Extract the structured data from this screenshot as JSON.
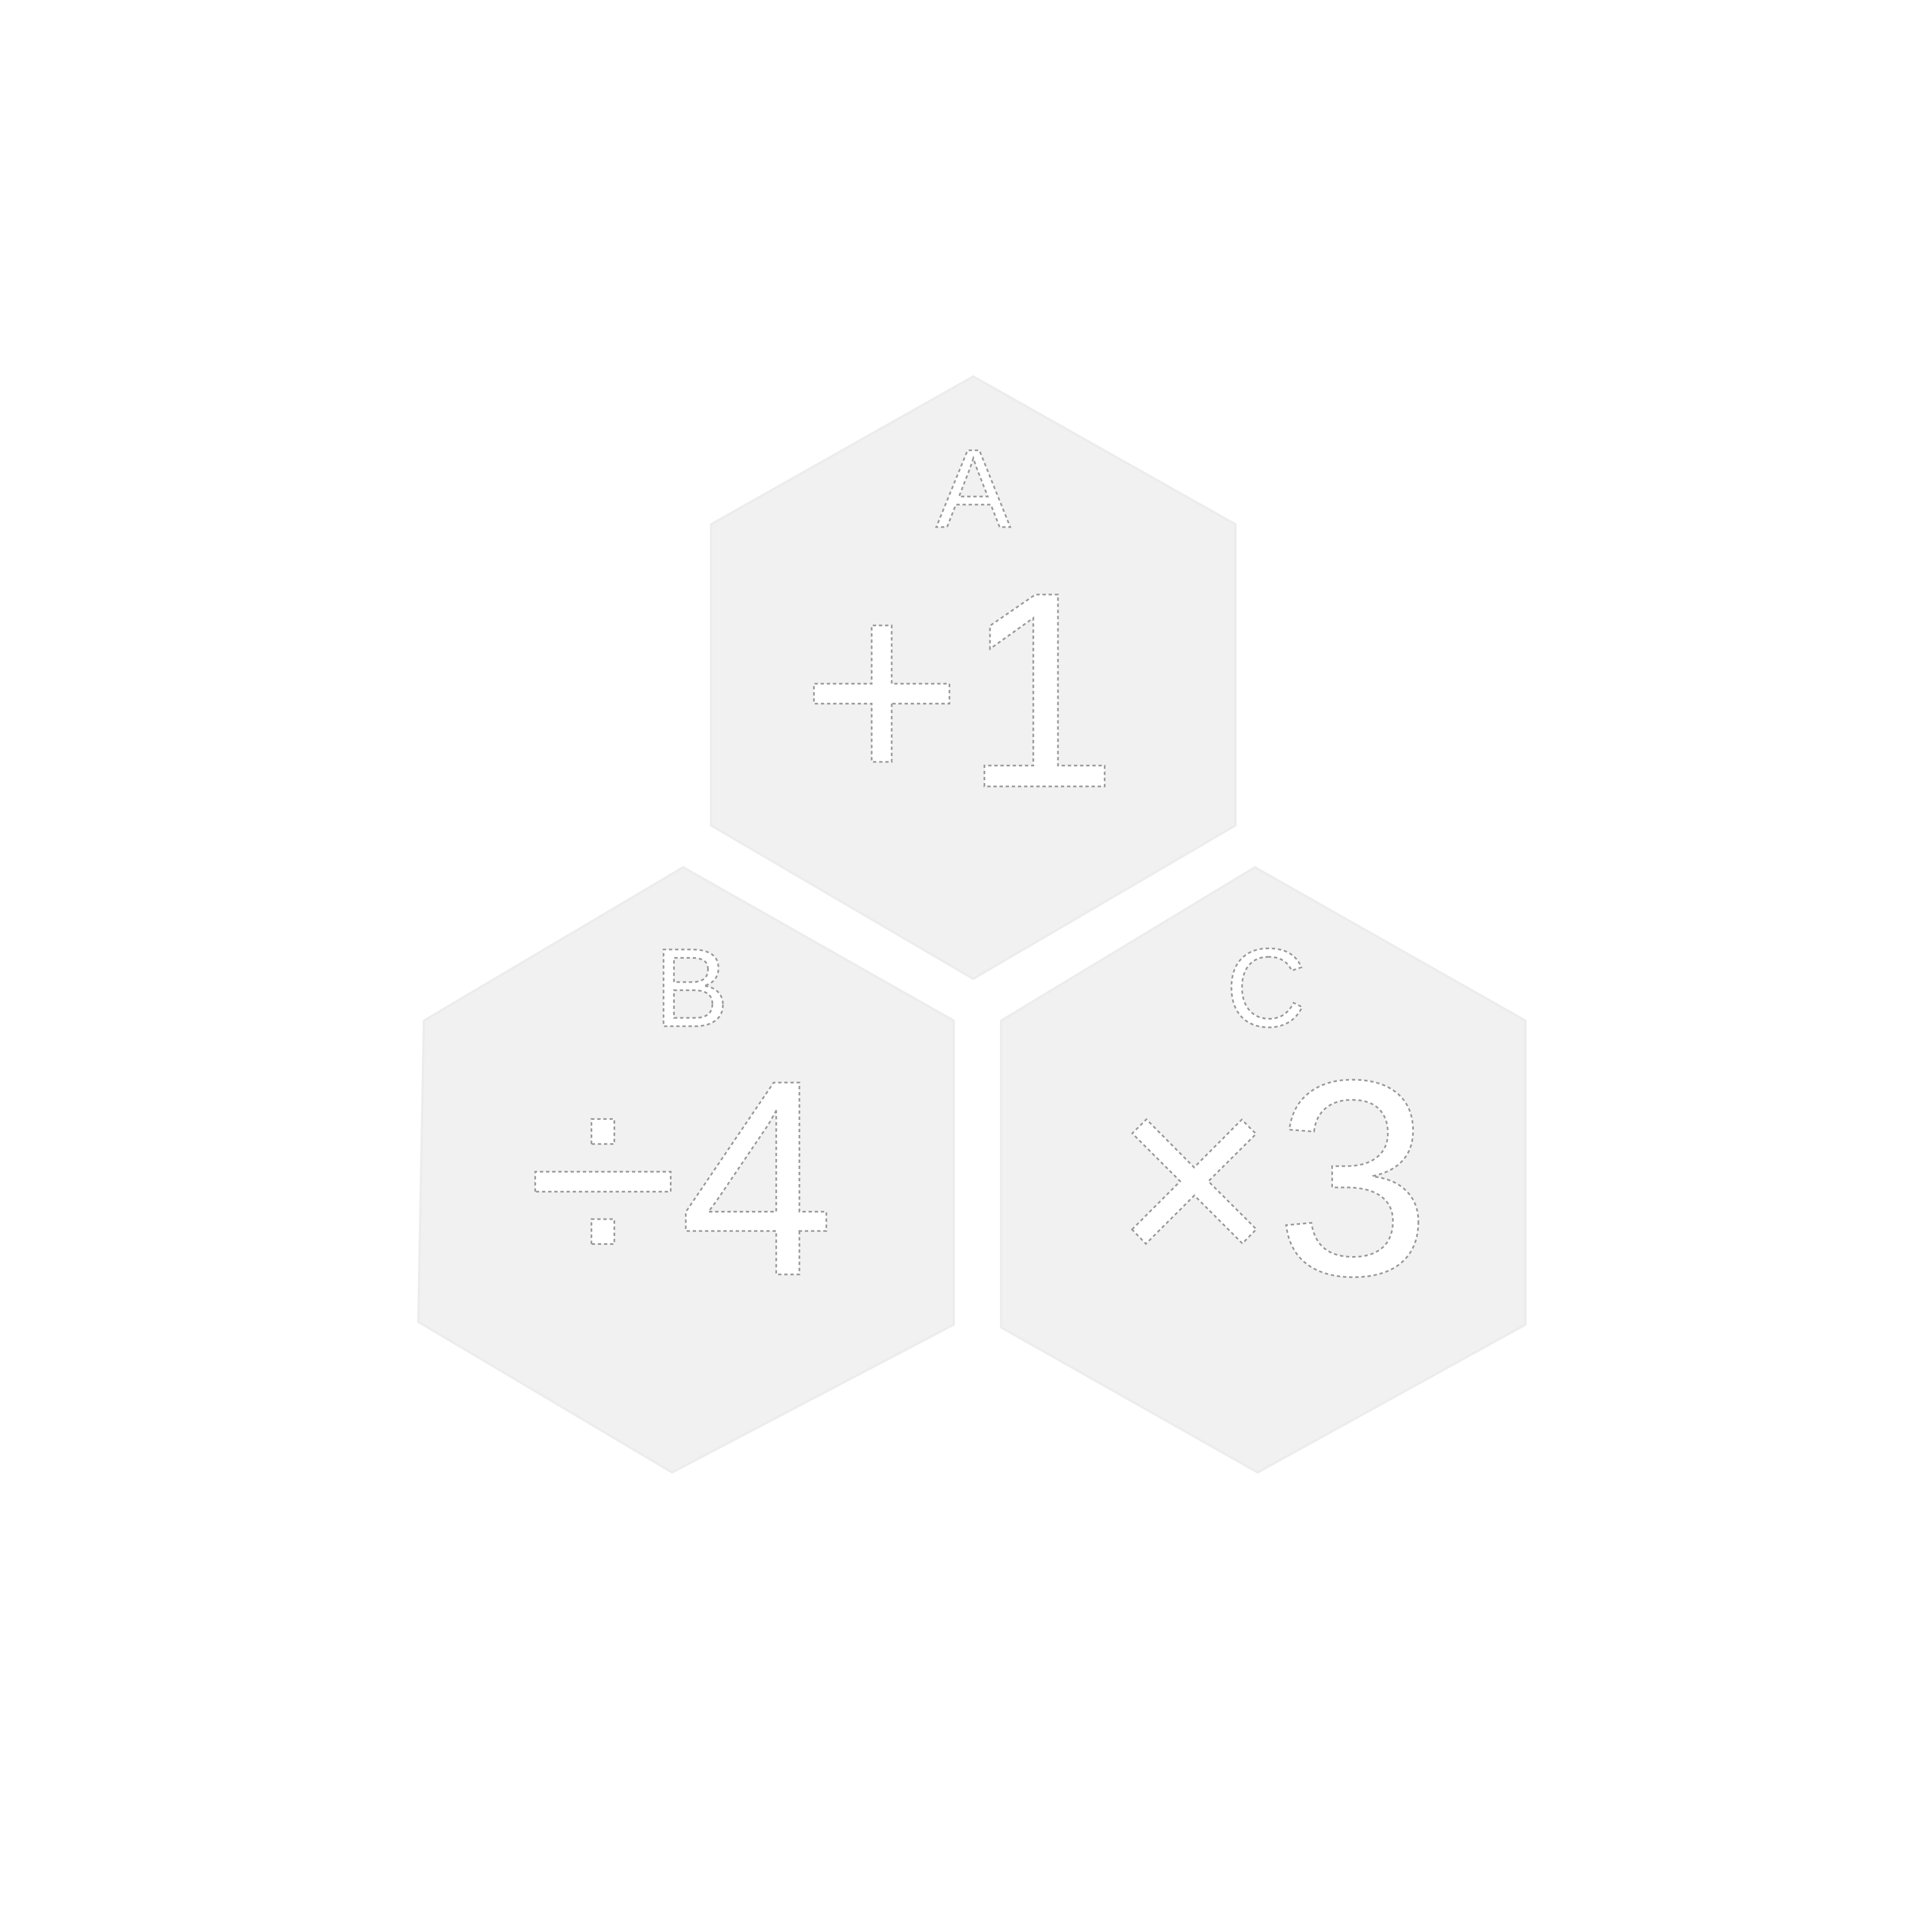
{
  "colors": {
    "background": "#ffffff",
    "tile_fill": "#f1f1f1",
    "text": "#ffffff",
    "text_outline": "#9a9a9a"
  },
  "tiles": [
    {
      "letter": "A",
      "operation": "+1"
    },
    {
      "letter": "B",
      "operation": "÷4"
    },
    {
      "letter": "C",
      "operation": "×3"
    }
  ]
}
